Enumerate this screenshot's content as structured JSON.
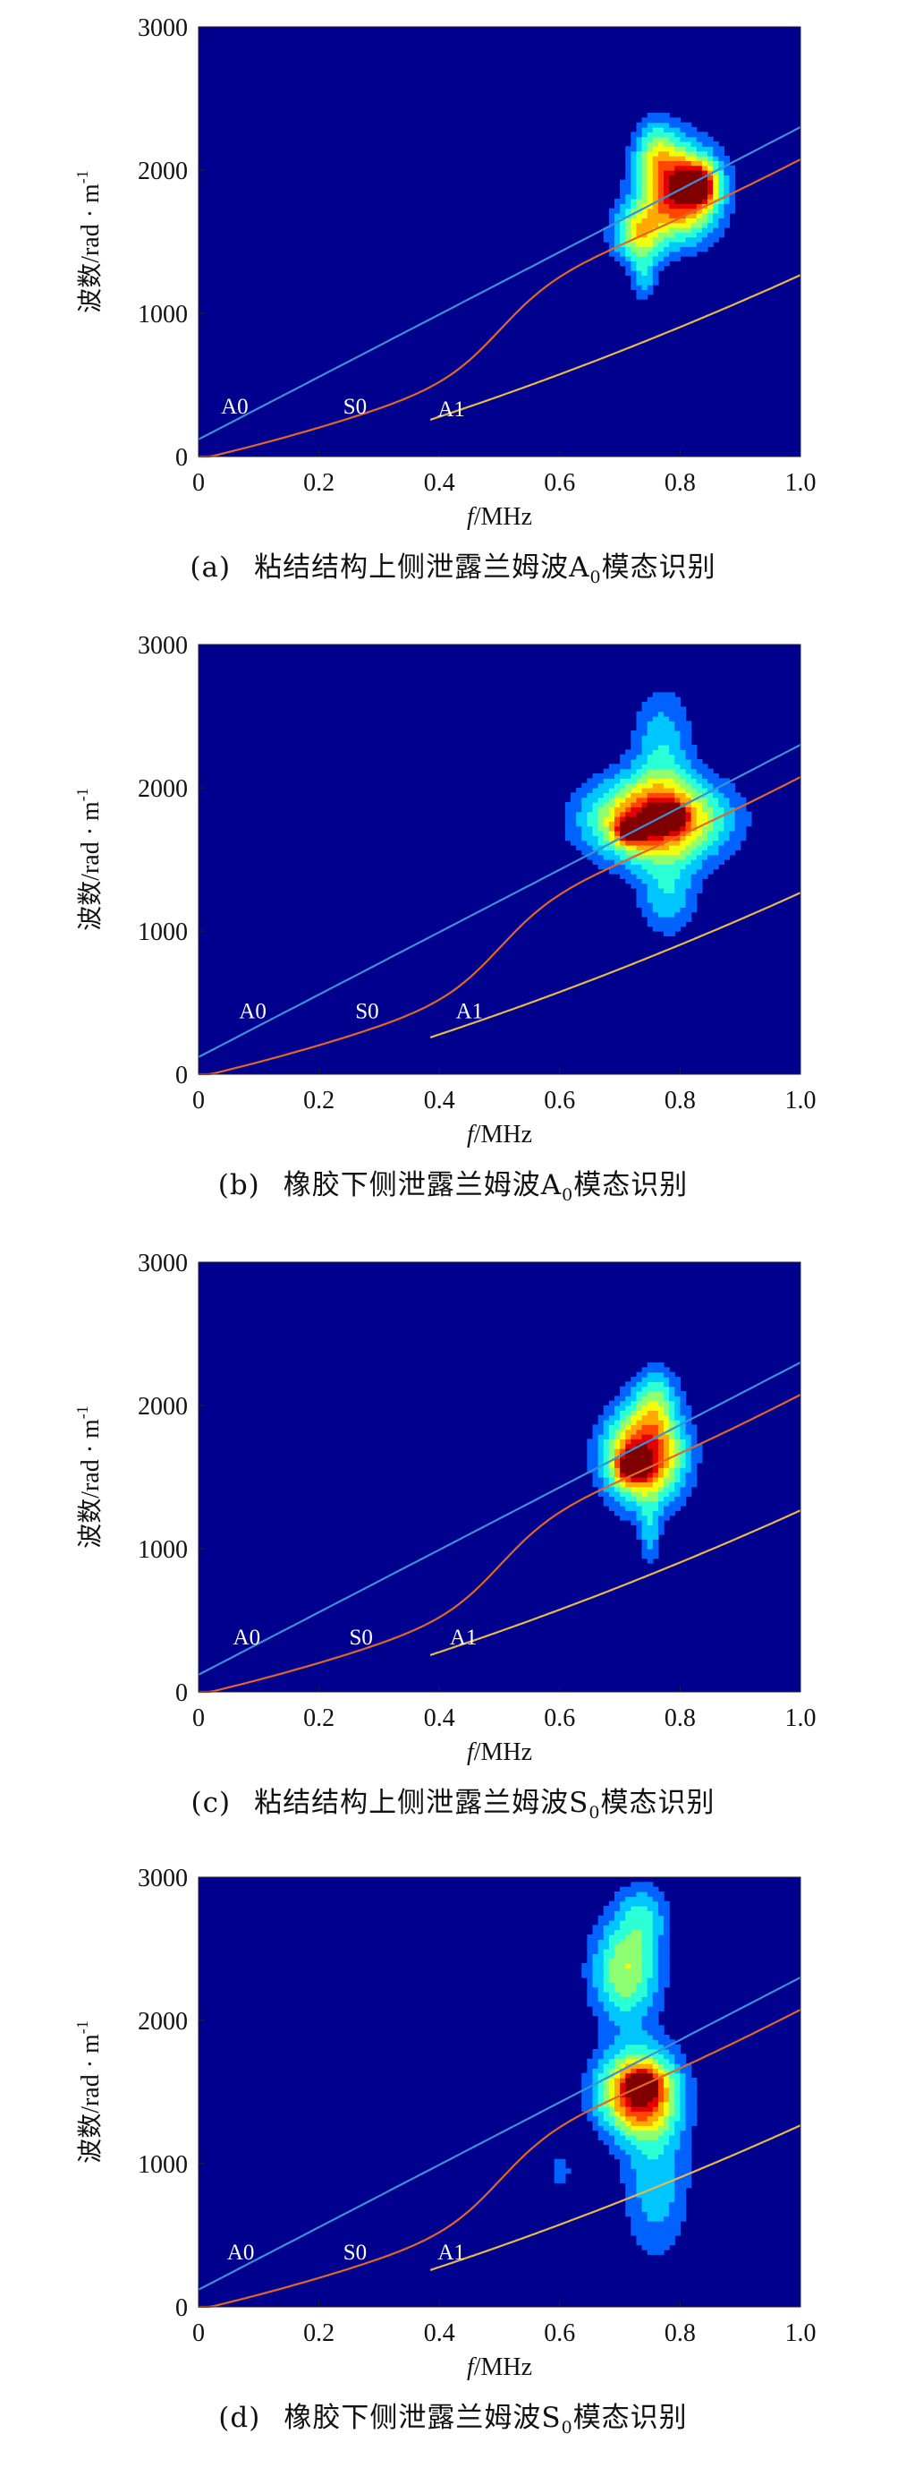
{
  "panels": [
    {
      "tag": "(a)",
      "caption_pre": "粘结结构上侧泄露兰姆波",
      "mode_letter": "A",
      "mode_sub": "0",
      "caption_post": "模态识别",
      "chart_data": {
        "type": "heatmap",
        "xlabel_italic": "f",
        "xlabel_rest": "/MHz",
        "ylabel_text": "波数/rad · m",
        "ylabel_sup": "-1",
        "xlim": [
          0,
          1.0
        ],
        "ylim": [
          0,
          3000
        ],
        "xticks": [
          "0",
          "0.2",
          "0.4",
          "0.6",
          "0.8",
          "1.0"
        ],
        "yticks": [
          "0",
          "1000",
          "2000",
          "3000"
        ],
        "curve_labels": [
          {
            "text": "A0",
            "x": 0.06,
            "y": 300
          },
          {
            "text": "S0",
            "x": 0.26,
            "y": 300
          },
          {
            "text": "A1",
            "x": 0.42,
            "y": 280
          }
        ],
        "blobs": [
          {
            "x": 0.8,
            "y": 1850,
            "sx": 0.045,
            "sy": 220,
            "amp": 1.0
          },
          {
            "x": 0.73,
            "y": 1550,
            "sx": 0.03,
            "sy": 140,
            "amp": 0.55
          },
          {
            "x": 0.76,
            "y": 2150,
            "sx": 0.025,
            "sy": 160,
            "amp": 0.35
          },
          {
            "x": 0.83,
            "y": 1900,
            "sx": 0.02,
            "sy": 90,
            "amp": 0.7
          },
          {
            "x": 0.74,
            "y": 1250,
            "sx": 0.015,
            "sy": 120,
            "amp": 0.25
          }
        ]
      }
    },
    {
      "tag": "(b)",
      "caption_pre": "橡胶下侧泄露兰姆波",
      "mode_letter": "A",
      "mode_sub": "0",
      "caption_post": "模态识别",
      "chart_data": {
        "type": "heatmap",
        "xlabel_italic": "f",
        "xlabel_rest": "/MHz",
        "ylabel_text": "波数/rad · m",
        "ylabel_sup": "-1",
        "xlim": [
          0,
          1.0
        ],
        "ylim": [
          0,
          3000
        ],
        "xticks": [
          "0",
          "0.2",
          "0.4",
          "0.6",
          "0.8",
          "1.0"
        ],
        "yticks": [
          "0",
          "1000",
          "2000",
          "3000"
        ],
        "curve_labels": [
          {
            "text": "A0",
            "x": 0.09,
            "y": 390
          },
          {
            "text": "S0",
            "x": 0.28,
            "y": 390
          },
          {
            "text": "A1",
            "x": 0.45,
            "y": 390
          }
        ],
        "blobs": [
          {
            "x": 0.76,
            "y": 1780,
            "sx": 0.075,
            "sy": 200,
            "amp": 1.0
          },
          {
            "x": 0.72,
            "y": 1700,
            "sx": 0.018,
            "sy": 60,
            "amp": 0.6
          },
          {
            "x": 0.78,
            "y": 1800,
            "sx": 0.018,
            "sy": 60,
            "amp": 0.6
          },
          {
            "x": 0.77,
            "y": 2300,
            "sx": 0.035,
            "sy": 280,
            "amp": 0.3
          },
          {
            "x": 0.78,
            "y": 1250,
            "sx": 0.035,
            "sy": 200,
            "amp": 0.3
          }
        ]
      }
    },
    {
      "tag": "(c)",
      "caption_pre": "粘结结构上侧泄露兰姆波",
      "mode_letter": "S",
      "mode_sub": "0",
      "caption_post": "模态识别",
      "chart_data": {
        "type": "heatmap",
        "xlabel_italic": "f",
        "xlabel_rest": "/MHz",
        "ylabel_text": "波数/rad · m",
        "ylabel_sup": "-1",
        "xlim": [
          0,
          1.0
        ],
        "ylim": [
          0,
          3000
        ],
        "xticks": [
          "0",
          "0.2",
          "0.4",
          "0.6",
          "0.8",
          "1.0"
        ],
        "yticks": [
          "0",
          "1000",
          "2000",
          "3000"
        ],
        "curve_labels": [
          {
            "text": "A0",
            "x": 0.08,
            "y": 330
          },
          {
            "text": "S0",
            "x": 0.27,
            "y": 330
          },
          {
            "text": "A1",
            "x": 0.44,
            "y": 330
          }
        ],
        "blobs": [
          {
            "x": 0.74,
            "y": 1650,
            "sx": 0.045,
            "sy": 230,
            "amp": 1.0
          },
          {
            "x": 0.72,
            "y": 1580,
            "sx": 0.018,
            "sy": 70,
            "amp": 0.6
          },
          {
            "x": 0.76,
            "y": 2050,
            "sx": 0.025,
            "sy": 160,
            "amp": 0.35
          },
          {
            "x": 0.75,
            "y": 1100,
            "sx": 0.012,
            "sy": 160,
            "amp": 0.25
          }
        ]
      }
    },
    {
      "tag": "(d)",
      "caption_pre": "橡胶下侧泄露兰姆波",
      "mode_letter": "S",
      "mode_sub": "0",
      "caption_post": "模态识别",
      "chart_data": {
        "type": "heatmap",
        "xlabel_italic": "f",
        "xlabel_rest": "/MHz",
        "ylabel_text": "波数/rad · m",
        "ylabel_sup": "-1",
        "xlim": [
          0,
          1.0
        ],
        "ylim": [
          0,
          3000
        ],
        "xticks": [
          "0",
          "0.2",
          "0.4",
          "0.6",
          "0.8",
          "1.0"
        ],
        "yticks": [
          "0",
          "1000",
          "2000",
          "3000"
        ],
        "curve_labels": [
          {
            "text": "A0",
            "x": 0.07,
            "y": 330
          },
          {
            "text": "S0",
            "x": 0.26,
            "y": 330
          },
          {
            "text": "A1",
            "x": 0.42,
            "y": 330
          }
        ],
        "blobs": [
          {
            "x": 0.73,
            "y": 1500,
            "sx": 0.045,
            "sy": 200,
            "amp": 1.0
          },
          {
            "x": 0.74,
            "y": 1550,
            "sx": 0.015,
            "sy": 60,
            "amp": 0.55
          },
          {
            "x": 0.71,
            "y": 2350,
            "sx": 0.04,
            "sy": 260,
            "amp": 0.55
          },
          {
            "x": 0.74,
            "y": 2750,
            "sx": 0.03,
            "sy": 160,
            "amp": 0.25
          },
          {
            "x": 0.76,
            "y": 900,
            "sx": 0.04,
            "sy": 400,
            "amp": 0.3
          },
          {
            "x": 0.6,
            "y": 950,
            "sx": 0.02,
            "sy": 120,
            "amp": 0.15
          }
        ]
      }
    }
  ]
}
